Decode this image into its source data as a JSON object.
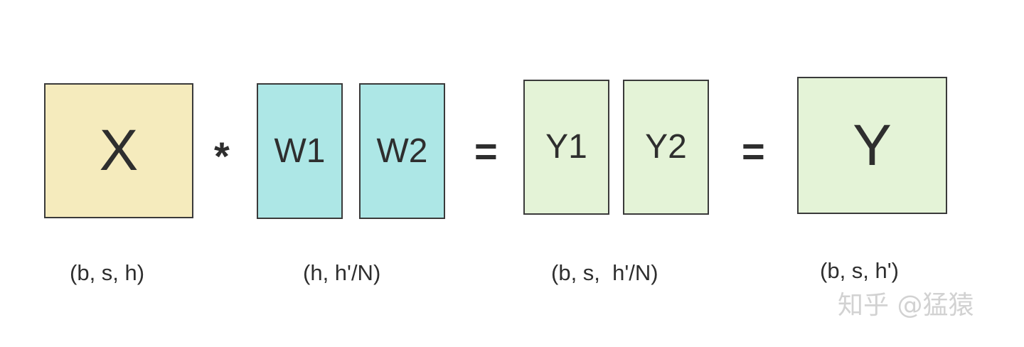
{
  "blocks": {
    "x": "X",
    "w1": "W1",
    "w2": "W2",
    "y1": "Y1",
    "y2": "Y2",
    "y": "Y"
  },
  "operators": {
    "multiply": "*",
    "equals_1": "=",
    "equals_2": "="
  },
  "shapes": {
    "x": "(b, s, h)",
    "w": "(h, h'/N)",
    "y_parts": "(b, s,  h'/N)",
    "y": "(b, s, h')"
  },
  "watermark": "知乎 @猛猿",
  "colors": {
    "x_fill": "#f5ebbd",
    "w_fill": "#ade7e6",
    "y_fill": "#e4f3d7",
    "border": "#3a3a3a"
  }
}
